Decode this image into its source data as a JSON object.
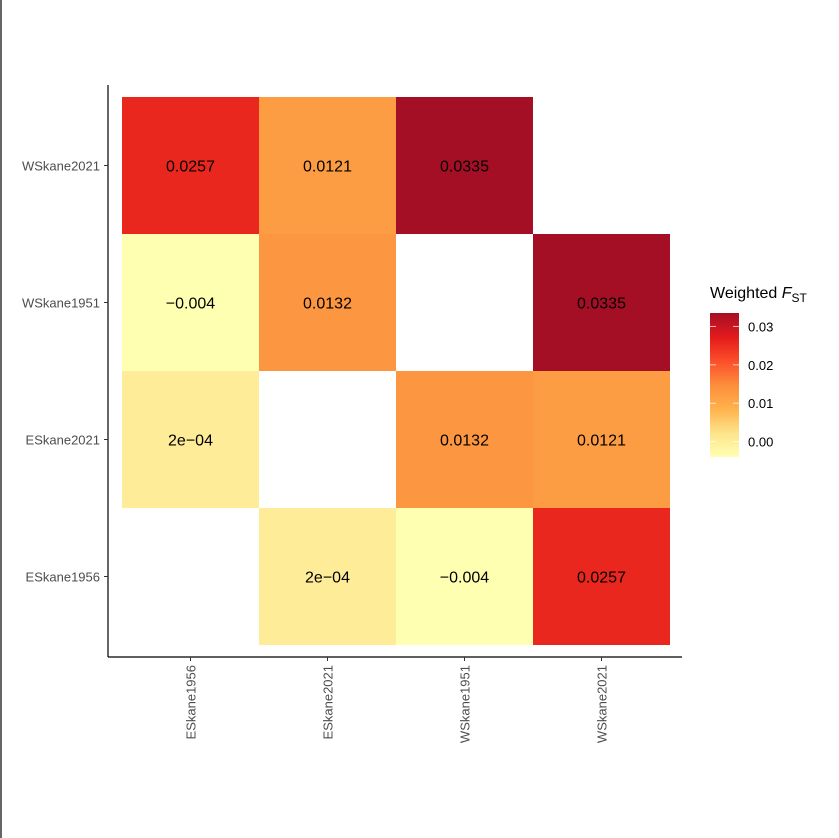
{
  "chart_data": {
    "type": "heatmap",
    "x_categories": [
      "ESkane1956",
      "ESkane2021",
      "WSkane1951",
      "WSkane2021"
    ],
    "y_categories": [
      "ESkane1956",
      "ESkane2021",
      "WSkane1951",
      "WSkane2021"
    ],
    "cells": [
      {
        "x": "ESkane1956",
        "y": "WSkane2021",
        "value": 0.0257,
        "label": "0.0257"
      },
      {
        "x": "ESkane2021",
        "y": "WSkane2021",
        "value": 0.0121,
        "label": "0.0121"
      },
      {
        "x": "WSkane1951",
        "y": "WSkane2021",
        "value": 0.0335,
        "label": "0.0335"
      },
      {
        "x": "ESkane1956",
        "y": "WSkane1951",
        "value": -0.004,
        "label": "−0.004"
      },
      {
        "x": "ESkane2021",
        "y": "WSkane1951",
        "value": 0.0132,
        "label": "0.0132"
      },
      {
        "x": "WSkane2021",
        "y": "WSkane1951",
        "value": 0.0335,
        "label": "0.0335"
      },
      {
        "x": "ESkane1956",
        "y": "ESkane2021",
        "value": 0.0002,
        "label": "2e−04"
      },
      {
        "x": "WSkane1951",
        "y": "ESkane2021",
        "value": 0.0132,
        "label": "0.0132"
      },
      {
        "x": "WSkane2021",
        "y": "ESkane2021",
        "value": 0.0121,
        "label": "0.0121"
      },
      {
        "x": "ESkane2021",
        "y": "ESkane1956",
        "value": 0.0002,
        "label": "2e−04"
      },
      {
        "x": "WSkane1951",
        "y": "ESkane1956",
        "value": -0.004,
        "label": "−0.004"
      },
      {
        "x": "WSkane2021",
        "y": "ESkane1956",
        "value": 0.0257,
        "label": "0.0257"
      }
    ],
    "color_scale": {
      "palette": "YlOrRd",
      "stops": [
        "#FFFFB2",
        "#FEE38B",
        "#FEB24C",
        "#FD8D3C",
        "#FC4E2A",
        "#E31A1C",
        "#A50F25"
      ],
      "limits": [
        -0.004,
        0.0335
      ]
    },
    "legend": {
      "title_main": "Weighted ",
      "title_italic": "F",
      "title_sub": "ST",
      "ticks": [
        0.0,
        0.01,
        0.02,
        0.03
      ],
      "tick_labels": [
        "0.00",
        "0.01",
        "0.02",
        "0.03"
      ],
      "placement": "right"
    },
    "grid": false
  }
}
